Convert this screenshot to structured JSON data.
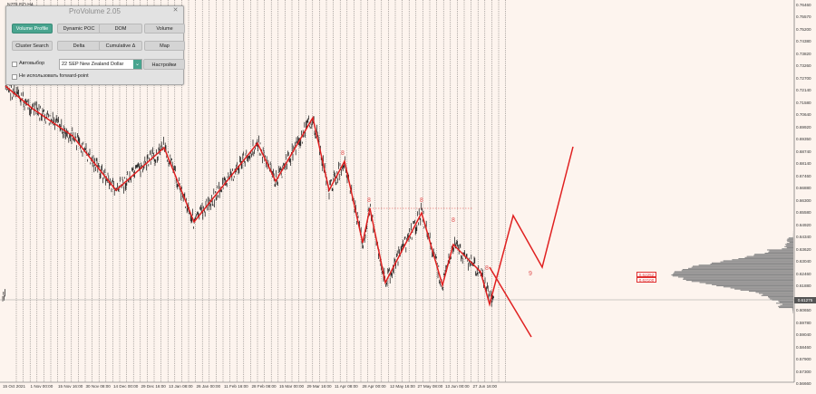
{
  "chart": {
    "symbol": "NZDUSD,H4",
    "y_labels": [
      "0.76460",
      "0.75570",
      "0.75200",
      "0.74380",
      "0.73820",
      "0.73260",
      "0.72700",
      "0.72140",
      "0.71580",
      "0.70640",
      "0.69920",
      "0.69350",
      "0.68740",
      "0.68140",
      "0.67460",
      "0.66880",
      "0.66300",
      "0.65580",
      "0.64920",
      "0.64340",
      "0.63620",
      "0.63040",
      "0.62460",
      "0.61880",
      "0.61300",
      "0.60650",
      "0.59780",
      "0.59040",
      "0.58460",
      "0.57900",
      "0.57300",
      "0.56660"
    ],
    "x_labels": [
      "15 Oct 2021",
      "1 Nov 00:00",
      "15 Nov 16:00",
      "30 Nov 08:00",
      "14 Dec 00:00",
      "29 Dec 16:00",
      "13 Jan 08:00",
      "26 Jan 00:00",
      "11 Feb 16:00",
      "28 Feb 08:00",
      "15 Mar 00:00",
      "29 Mar 16:00",
      "11 Apr 08:00",
      "28 Apr 00:00",
      "12 May 16:00",
      "27 May 08:00",
      "13 Jun 00:00",
      "27 Jun 16:00"
    ],
    "current_price": "0.61275",
    "levels": [
      "0.62252",
      "0.62100"
    ],
    "wave_labels": [
      "8",
      "8",
      "8",
      "8",
      "8",
      "9"
    ],
    "colors": {
      "wave": "#e02020",
      "candles": "#111111",
      "profile": "#8a8a8a",
      "background": "#fdf4ee"
    }
  },
  "panel": {
    "title": "ProVolume 2.05",
    "buttons": [
      "Volume Profile",
      "Dynamic POC",
      "DOM",
      "Volume",
      "Cluster Search",
      "Delta",
      "Cumulative Δ",
      "Map"
    ],
    "auto_label": "Автовыбор",
    "instrument": "22 SEP New Zealand Dollar",
    "settings": "Настройки",
    "forward_label": "Не использовать forward-point"
  }
}
